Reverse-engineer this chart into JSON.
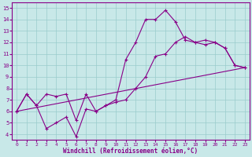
{
  "xlabel": "Windchill (Refroidissement éolien,°C)",
  "xlim": [
    -0.5,
    23.5
  ],
  "ylim": [
    3.5,
    15.5
  ],
  "yticks": [
    4,
    5,
    6,
    7,
    8,
    9,
    10,
    11,
    12,
    13,
    14,
    15
  ],
  "xticks": [
    0,
    1,
    2,
    3,
    4,
    5,
    6,
    7,
    8,
    9,
    10,
    11,
    12,
    13,
    14,
    15,
    16,
    17,
    18,
    19,
    20,
    21,
    22,
    23
  ],
  "bg_color": "#c8e8e8",
  "line_color": "#880088",
  "grid_color": "#99cccc",
  "lines": [
    {
      "x": [
        0,
        1,
        2,
        3,
        4,
        5,
        6,
        7,
        8,
        9,
        10,
        11,
        12,
        13,
        14,
        15,
        16,
        17,
        18,
        19,
        20,
        21,
        22,
        23
      ],
      "y": [
        6.0,
        7.5,
        6.5,
        4.5,
        5.0,
        5.5,
        3.8,
        6.2,
        6.0,
        6.5,
        7.0,
        10.5,
        12.0,
        14.0,
        14.0,
        14.8,
        13.8,
        12.2,
        12.0,
        12.2,
        12.0,
        11.5,
        10.0,
        9.8
      ]
    },
    {
      "x": [
        0,
        1,
        2,
        3,
        4,
        5,
        6,
        7,
        8,
        9,
        10,
        11,
        12,
        13,
        14,
        15,
        16,
        17,
        18,
        19,
        20,
        21,
        22,
        23
      ],
      "y": [
        6.0,
        7.5,
        6.5,
        7.5,
        7.3,
        7.5,
        5.2,
        7.5,
        6.0,
        6.5,
        6.8,
        7.0,
        8.0,
        9.0,
        10.8,
        11.0,
        12.0,
        12.5,
        12.0,
        11.8,
        12.0,
        11.5,
        10.0,
        9.8
      ]
    },
    {
      "x": [
        0,
        23
      ],
      "y": [
        6.0,
        9.8
      ]
    }
  ]
}
